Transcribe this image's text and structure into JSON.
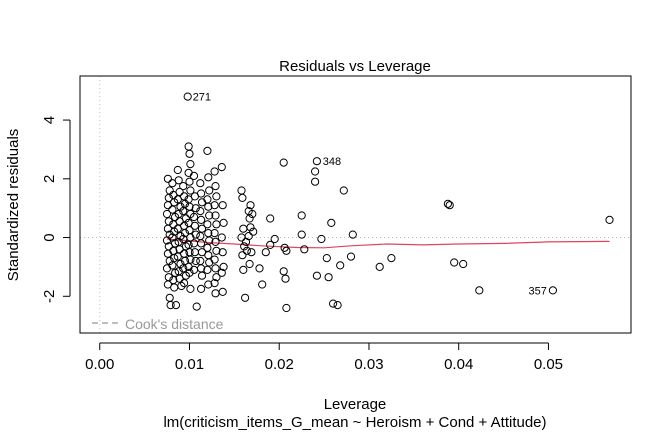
{
  "chart_data": {
    "type": "scatter",
    "title": "Residuals vs Leverage",
    "xlabel": "Leverage",
    "ylabel": "Standardized residuals",
    "subtitle": "lm(criticism_items_G_mean ~ Heroism + Cond + Attitude)",
    "xlim": [
      -0.0022,
      0.0592
    ],
    "ylim": [
      -3.25,
      5.5
    ],
    "x_ticks": [
      0.0,
      0.01,
      0.02,
      0.03,
      0.04,
      0.05
    ],
    "x_tick_labels": [
      "0.00",
      "0.01",
      "0.02",
      "0.03",
      "0.04",
      "0.05"
    ],
    "y_ticks": [
      -2,
      0,
      2,
      4
    ],
    "y_tick_labels": [
      "-2",
      "0",
      "2",
      "4"
    ],
    "reference_lines": {
      "h": 0,
      "v": 0,
      "style": "dotted",
      "color": "#bbbbbb"
    },
    "point_labels": [
      {
        "text": "271",
        "x": 0.0098,
        "y": 4.8
      },
      {
        "text": "348",
        "x": 0.0243,
        "y": 2.6
      },
      {
        "text": "357",
        "x": 0.0505,
        "y": -1.8
      }
    ],
    "smoother": {
      "color": "#e0455d",
      "x": [
        0.0075,
        0.0095,
        0.012,
        0.015,
        0.018,
        0.022,
        0.025,
        0.028,
        0.032,
        0.036,
        0.04,
        0.045,
        0.05,
        0.0568
      ],
      "y": [
        -0.05,
        -0.1,
        -0.17,
        -0.22,
        -0.28,
        -0.34,
        -0.35,
        -0.28,
        -0.22,
        -0.25,
        -0.22,
        -0.2,
        -0.15,
        -0.13
      ]
    },
    "legend": {
      "label": "Cook's distance",
      "position": "bottom-left",
      "color": "#999999"
    },
    "series": [
      {
        "name": "observations",
        "points": [
          [
            0.0076,
            2.0
          ],
          [
            0.0078,
            1.6
          ],
          [
            0.0077,
            1.35
          ],
          [
            0.0076,
            1.1
          ],
          [
            0.0075,
            0.8
          ],
          [
            0.0077,
            0.55
          ],
          [
            0.0076,
            0.3
          ],
          [
            0.0078,
            0.1
          ],
          [
            0.0075,
            -0.1
          ],
          [
            0.0077,
            -0.3
          ],
          [
            0.0076,
            -0.55
          ],
          [
            0.0078,
            -0.8
          ],
          [
            0.0075,
            -1.05
          ],
          [
            0.0077,
            -1.35
          ],
          [
            0.0076,
            -1.6
          ],
          [
            0.0078,
            -2.05
          ],
          [
            0.0079,
            -2.3
          ],
          [
            0.0081,
            1.85
          ],
          [
            0.0082,
            1.45
          ],
          [
            0.0083,
            1.2
          ],
          [
            0.0081,
            0.95
          ],
          [
            0.0084,
            0.7
          ],
          [
            0.0082,
            0.45
          ],
          [
            0.0083,
            0.2
          ],
          [
            0.0081,
            0.0
          ],
          [
            0.0084,
            -0.2
          ],
          [
            0.0082,
            -0.45
          ],
          [
            0.0083,
            -0.7
          ],
          [
            0.0081,
            -0.95
          ],
          [
            0.0084,
            -1.2
          ],
          [
            0.0082,
            -1.45
          ],
          [
            0.0083,
            -1.7
          ],
          [
            0.0085,
            -2.3
          ],
          [
            0.0087,
            2.3
          ],
          [
            0.0088,
            1.95
          ],
          [
            0.0089,
            1.55
          ],
          [
            0.0087,
            1.3
          ],
          [
            0.009,
            1.05
          ],
          [
            0.0088,
            0.8
          ],
          [
            0.0089,
            0.55
          ],
          [
            0.0087,
            0.3
          ],
          [
            0.009,
            0.05
          ],
          [
            0.0088,
            -0.15
          ],
          [
            0.0089,
            -0.4
          ],
          [
            0.0087,
            -0.65
          ],
          [
            0.009,
            -0.9
          ],
          [
            0.0088,
            -1.15
          ],
          [
            0.0089,
            -1.4
          ],
          [
            0.0091,
            -1.65
          ],
          [
            0.0093,
            1.75
          ],
          [
            0.0094,
            1.4
          ],
          [
            0.0095,
            1.15
          ],
          [
            0.0093,
            0.9
          ],
          [
            0.0096,
            0.65
          ],
          [
            0.0094,
            0.4
          ],
          [
            0.0095,
            0.15
          ],
          [
            0.0093,
            -0.05
          ],
          [
            0.0096,
            -0.3
          ],
          [
            0.0094,
            -0.55
          ],
          [
            0.0095,
            -0.8
          ],
          [
            0.0093,
            -1.05
          ],
          [
            0.0096,
            -1.3
          ],
          [
            0.0094,
            -1.55
          ],
          [
            0.0098,
            4.8
          ],
          [
            0.0099,
            3.1
          ],
          [
            0.01,
            2.85
          ],
          [
            0.0101,
            2.5
          ],
          [
            0.0099,
            2.2
          ],
          [
            0.01,
            1.9
          ],
          [
            0.0101,
            1.6
          ],
          [
            0.0099,
            1.3
          ],
          [
            0.01,
            1.05
          ],
          [
            0.0101,
            0.8
          ],
          [
            0.0099,
            0.5
          ],
          [
            0.01,
            0.25
          ],
          [
            0.0101,
            0.0
          ],
          [
            0.0099,
            -0.25
          ],
          [
            0.01,
            -0.5
          ],
          [
            0.0101,
            -0.75
          ],
          [
            0.0099,
            -1.0
          ],
          [
            0.01,
            -1.2
          ],
          [
            0.0101,
            -1.75
          ],
          [
            0.0105,
            2.1
          ],
          [
            0.0106,
            1.4
          ],
          [
            0.0107,
            1.0
          ],
          [
            0.0105,
            0.7
          ],
          [
            0.0106,
            0.4
          ],
          [
            0.0107,
            0.1
          ],
          [
            0.0105,
            -0.2
          ],
          [
            0.0106,
            -0.5
          ],
          [
            0.0107,
            -0.8
          ],
          [
            0.0105,
            -1.1
          ],
          [
            0.0108,
            -2.35
          ],
          [
            0.0112,
            1.85
          ],
          [
            0.0113,
            1.5
          ],
          [
            0.0114,
            1.2
          ],
          [
            0.0112,
            0.9
          ],
          [
            0.0113,
            0.6
          ],
          [
            0.0114,
            0.3
          ],
          [
            0.0112,
            0.05
          ],
          [
            0.0113,
            -0.2
          ],
          [
            0.0114,
            -0.5
          ],
          [
            0.0112,
            -0.8
          ],
          [
            0.0113,
            -1.05
          ],
          [
            0.0114,
            -1.3
          ],
          [
            0.0113,
            -1.75
          ],
          [
            0.012,
            2.95
          ],
          [
            0.0121,
            2.05
          ],
          [
            0.0122,
            1.6
          ],
          [
            0.012,
            1.3
          ],
          [
            0.0121,
            1.05
          ],
          [
            0.0122,
            0.75
          ],
          [
            0.012,
            0.45
          ],
          [
            0.0121,
            0.15
          ],
          [
            0.0122,
            -0.1
          ],
          [
            0.012,
            -0.35
          ],
          [
            0.0121,
            -0.6
          ],
          [
            0.0122,
            -0.85
          ],
          [
            0.012,
            -1.1
          ],
          [
            0.0121,
            -1.6
          ],
          [
            0.0128,
            2.25
          ],
          [
            0.0129,
            1.75
          ],
          [
            0.013,
            1.4
          ],
          [
            0.0128,
            1.1
          ],
          [
            0.0129,
            0.75
          ],
          [
            0.013,
            0.45
          ],
          [
            0.0128,
            0.15
          ],
          [
            0.0129,
            -0.15
          ],
          [
            0.013,
            -0.45
          ],
          [
            0.0128,
            -0.75
          ],
          [
            0.0129,
            -1.05
          ],
          [
            0.013,
            -1.35
          ],
          [
            0.0128,
            -1.55
          ],
          [
            0.0129,
            -1.9
          ],
          [
            0.0136,
            2.4
          ],
          [
            0.0137,
            1.1
          ],
          [
            0.0138,
            0.5
          ],
          [
            0.0136,
            0.0
          ],
          [
            0.0137,
            -0.5
          ],
          [
            0.0138,
            -1.0
          ],
          [
            0.0136,
            -1.2
          ],
          [
            0.0137,
            -1.85
          ],
          [
            0.0158,
            1.6
          ],
          [
            0.0159,
            1.35
          ],
          [
            0.016,
            0.3
          ],
          [
            0.0158,
            0.0
          ],
          [
            0.0161,
            -0.3
          ],
          [
            0.0159,
            -0.6
          ],
          [
            0.016,
            -1.1
          ],
          [
            0.0162,
            -2.05
          ],
          [
            0.0163,
            -0.15
          ],
          [
            0.0164,
            -0.45
          ],
          [
            0.0166,
            0.9
          ],
          [
            0.0167,
            0.65
          ],
          [
            0.0168,
            0.35
          ],
          [
            0.0166,
            0.05
          ],
          [
            0.0169,
            -0.5
          ],
          [
            0.0167,
            -0.9
          ],
          [
            0.0168,
            1.1
          ],
          [
            0.017,
            0.8
          ],
          [
            0.0171,
            0.2
          ],
          [
            0.0178,
            -1.05
          ],
          [
            0.0181,
            -1.6
          ],
          [
            0.0185,
            -0.5
          ],
          [
            0.019,
            0.65
          ],
          [
            0.019,
            -0.25
          ],
          [
            0.0195,
            -0.05
          ],
          [
            0.0205,
            2.55
          ],
          [
            0.0205,
            -1.15
          ],
          [
            0.0207,
            -1.4
          ],
          [
            0.0206,
            -0.35
          ],
          [
            0.0208,
            -2.4
          ],
          [
            0.0208,
            -0.45
          ],
          [
            0.0225,
            0.75
          ],
          [
            0.0225,
            0.1
          ],
          [
            0.0228,
            -0.4
          ],
          [
            0.024,
            2.25
          ],
          [
            0.024,
            1.9
          ],
          [
            0.0242,
            2.6
          ],
          [
            0.0242,
            -1.3
          ],
          [
            0.0247,
            -0.05
          ],
          [
            0.0253,
            -0.7
          ],
          [
            0.0255,
            -1.35
          ],
          [
            0.0258,
            0.5
          ],
          [
            0.026,
            -2.25
          ],
          [
            0.0265,
            -2.3
          ],
          [
            0.0268,
            -0.95
          ],
          [
            0.0272,
            1.6
          ],
          [
            0.028,
            -0.65
          ],
          [
            0.0282,
            0.1
          ],
          [
            0.0312,
            -1.0
          ],
          [
            0.0325,
            -0.7
          ],
          [
            0.0388,
            1.15
          ],
          [
            0.039,
            1.1
          ],
          [
            0.0395,
            -0.85
          ],
          [
            0.0405,
            -0.9
          ],
          [
            0.0423,
            -1.8
          ],
          [
            0.0505,
            -1.8
          ],
          [
            0.0568,
            0.6
          ]
        ]
      }
    ]
  }
}
